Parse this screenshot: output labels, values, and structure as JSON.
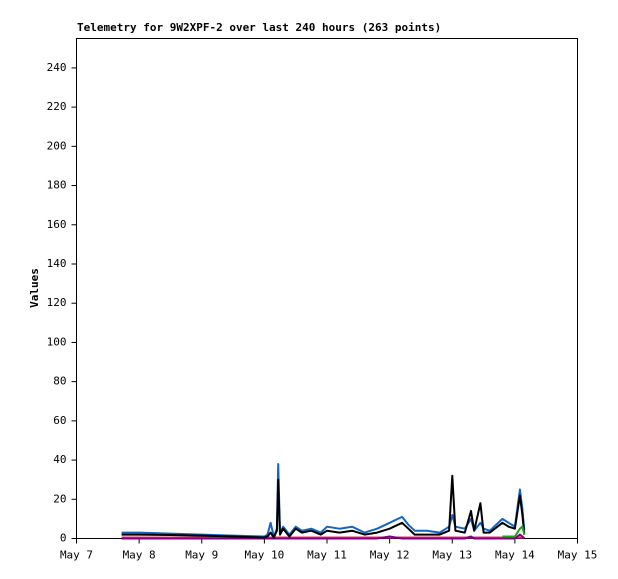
{
  "chart_data": {
    "type": "line",
    "title": "Telemetry for 9W2XPF-2 over last 240 hours (263 points)",
    "y_label": "Values",
    "x": [
      7.72,
      8.0,
      8.5,
      9.0,
      9.5,
      10.0,
      10.05,
      10.1,
      10.15,
      10.2,
      10.22,
      10.25,
      10.3,
      10.4,
      10.5,
      10.6,
      10.75,
      10.9,
      11.0,
      11.2,
      11.4,
      11.6,
      11.8,
      12.0,
      12.2,
      12.3,
      12.4,
      12.6,
      12.8,
      12.95,
      13.0,
      13.05,
      13.2,
      13.3,
      13.35,
      13.45,
      13.5,
      13.6,
      13.8,
      13.9,
      14.0,
      14.08,
      14.12,
      14.15
    ],
    "series": [
      {
        "color": "#e0307a",
        "values": [
          0.5,
          0.5,
          0.5,
          0.5,
          0.5,
          0.5,
          0.5,
          0.5,
          0.5,
          0.5,
          0.5,
          0.5,
          0.5,
          0.5,
          0.5,
          0.5,
          0.5,
          0.5,
          0.5,
          0.5,
          0.5,
          0.5,
          0.5,
          0.5,
          0.5,
          0.5,
          0.5,
          0.5,
          0.5,
          0.5,
          0.5,
          0.5,
          0.5,
          0.5,
          0.5,
          0.5,
          0.5,
          0.5,
          0.5,
          0.5,
          0.5,
          0.5,
          0.5,
          0.5
        ]
      },
      {
        "color": "#800080",
        "values": [
          0,
          0,
          0,
          0,
          0,
          0,
          0,
          0,
          0,
          0,
          0,
          0,
          0,
          0,
          0,
          0,
          0,
          0,
          0,
          0,
          0,
          0,
          0,
          1,
          0,
          0,
          0,
          0,
          0,
          0,
          0,
          0,
          0,
          1,
          0,
          0,
          0,
          0,
          0,
          0,
          0,
          2,
          1,
          0
        ]
      },
      {
        "color": "#1565c0",
        "values": [
          3,
          3,
          2.5,
          2,
          1.5,
          1,
          2,
          8,
          1,
          5,
          38,
          3,
          6,
          2,
          6,
          4,
          5,
          3,
          6,
          5,
          6,
          3,
          5,
          8,
          11,
          7,
          4,
          4,
          3,
          6,
          12,
          6,
          5,
          10,
          4,
          8,
          5,
          4,
          10,
          8,
          6,
          25,
          15,
          4
        ]
      },
      {
        "color": "#000000",
        "values": [
          2,
          2,
          1.8,
          1.5,
          1,
          0.5,
          1,
          3,
          0.5,
          4,
          30,
          2,
          5,
          1,
          5,
          3,
          4,
          2,
          4,
          3,
          4,
          2,
          3,
          5,
          8,
          5,
          2,
          2,
          2,
          4,
          32,
          4,
          3,
          14,
          4,
          18,
          3,
          3,
          8,
          6,
          5,
          22,
          12,
          2
        ]
      },
      {
        "color": "#22a022",
        "values": [
          null,
          null,
          null,
          null,
          null,
          null,
          null,
          null,
          null,
          null,
          null,
          null,
          null,
          null,
          null,
          null,
          null,
          null,
          null,
          null,
          null,
          null,
          null,
          null,
          null,
          null,
          null,
          null,
          null,
          null,
          null,
          null,
          null,
          null,
          null,
          null,
          null,
          null,
          1,
          1,
          1,
          5,
          6,
          2
        ]
      }
    ],
    "xlim": [
      7,
      15
    ],
    "xticks": [
      {
        "value": 7,
        "label": "May 7"
      },
      {
        "value": 8,
        "label": "May 8"
      },
      {
        "value": 9,
        "label": "May 9"
      },
      {
        "value": 10,
        "label": "May 10"
      },
      {
        "value": 11,
        "label": "May 11"
      },
      {
        "value": 12,
        "label": "May 12"
      },
      {
        "value": 13,
        "label": "May 13"
      },
      {
        "value": 14,
        "label": "May 14"
      },
      {
        "value": 15,
        "label": "May 15"
      }
    ],
    "ylim": [
      0,
      255
    ],
    "yticks": [
      0,
      20,
      40,
      60,
      80,
      100,
      120,
      140,
      160,
      180,
      200,
      220,
      240
    ],
    "grid": false
  }
}
